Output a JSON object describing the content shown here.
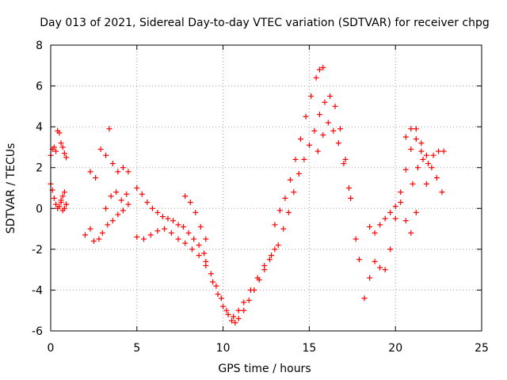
{
  "chart_data": {
    "type": "scatter",
    "title": "Day 013 of 2021, Sidereal Day-to-day VTEC variation (SDTVAR) for receiver chpg",
    "xlabel": "GPS time / hours",
    "ylabel": "SDTVAR / TECUs",
    "xlim": [
      0,
      25
    ],
    "ylim": [
      -6,
      8
    ],
    "xticks": [
      0,
      5,
      10,
      15,
      20,
      25
    ],
    "yticks": [
      -6,
      -4,
      -2,
      0,
      2,
      4,
      6,
      8
    ],
    "grid": true,
    "marker": "+",
    "series": [
      {
        "name": "SDTVAR",
        "color": "#ff0000",
        "x": [
          0.0,
          0.1,
          0.2,
          0.3,
          0.4,
          0.5,
          0.6,
          0.7,
          0.8,
          0.9,
          0.0,
          0.1,
          0.2,
          0.3,
          0.4,
          0.5,
          0.6,
          0.7,
          0.8,
          0.9,
          0.6,
          0.7,
          0.8,
          0.9,
          2.0,
          2.3,
          2.5,
          2.8,
          3.0,
          3.3,
          3.6,
          3.9,
          4.2,
          4.5,
          2.3,
          2.6,
          2.9,
          3.2,
          3.4,
          3.6,
          3.9,
          4.2,
          4.5,
          3.2,
          3.5,
          3.8,
          4.1,
          4.4,
          5.0,
          5.3,
          5.6,
          5.9,
          6.2,
          6.5,
          6.8,
          7.1,
          7.4,
          7.7,
          8.0,
          8.3,
          8.6,
          8.9,
          5.0,
          5.4,
          5.8,
          6.2,
          6.6,
          7.0,
          7.4,
          7.8,
          8.2,
          8.6,
          9.0,
          7.8,
          8.1,
          8.4,
          8.7,
          9.0,
          9.0,
          9.3,
          9.6,
          9.9,
          10.2,
          10.5,
          10.7,
          10.9,
          11.2,
          11.5,
          11.8,
          12.1,
          12.4,
          12.7,
          13.0,
          9.4,
          9.7,
          10.0,
          10.3,
          10.6,
          10.9,
          11.2,
          11.6,
          12.0,
          12.4,
          12.8,
          13.0,
          13.3,
          13.6,
          13.9,
          14.2,
          14.5,
          14.8,
          15.1,
          15.4,
          15.6,
          15.8,
          13.2,
          13.5,
          13.8,
          14.1,
          14.4,
          14.7,
          15.0,
          15.3,
          15.6,
          15.9,
          16.2,
          16.5,
          16.8,
          17.1,
          17.4,
          17.7,
          17.9,
          15.5,
          15.8,
          16.1,
          16.4,
          16.7,
          17.0,
          17.3,
          18.2,
          18.5,
          18.8,
          19.1,
          19.4,
          19.7,
          20.0,
          20.3,
          20.6,
          20.9,
          21.2,
          21.5,
          21.8,
          18.5,
          18.8,
          19.1,
          19.4,
          19.7,
          20.0,
          20.3,
          20.6,
          20.9,
          21.2,
          20.6,
          20.9,
          21.2,
          21.5,
          21.8,
          22.1,
          22.4,
          22.7,
          21.0,
          21.3,
          21.6,
          21.9,
          22.2,
          22.5,
          22.8
        ],
        "y": [
          2.6,
          2.9,
          3.0,
          2.8,
          3.8,
          3.7,
          3.2,
          3.0,
          2.7,
          2.5,
          1.2,
          0.9,
          0.5,
          0.2,
          0.0,
          0.1,
          0.3,
          0.6,
          0.8,
          0.2,
          0.4,
          -0.1,
          0.0,
          0.2,
          -1.3,
          -1.0,
          -1.6,
          -1.5,
          -1.2,
          -0.8,
          -0.6,
          -0.3,
          -0.1,
          0.2,
          1.8,
          1.5,
          2.9,
          2.6,
          3.9,
          2.2,
          1.8,
          2.0,
          1.8,
          0.0,
          0.6,
          0.8,
          0.4,
          0.7,
          1.0,
          0.7,
          0.3,
          0.0,
          -0.2,
          -0.4,
          -0.5,
          -0.6,
          -0.8,
          -0.9,
          -1.2,
          -1.5,
          -1.8,
          -2.2,
          -1.4,
          -1.5,
          -1.3,
          -1.1,
          -1.0,
          -1.2,
          -1.5,
          -1.7,
          -2.0,
          -2.3,
          -2.6,
          0.6,
          0.3,
          -0.2,
          -0.9,
          -1.5,
          -2.8,
          -3.2,
          -3.8,
          -4.4,
          -5.0,
          -5.5,
          -5.6,
          -5.4,
          -5.0,
          -4.5,
          -4.0,
          -3.5,
          -3.0,
          -2.5,
          -2.0,
          -3.6,
          -4.2,
          -4.8,
          -5.2,
          -5.3,
          -5.0,
          -4.6,
          -4.0,
          -3.4,
          -2.8,
          -2.3,
          -0.8,
          -0.1,
          0.5,
          1.4,
          2.4,
          3.4,
          4.5,
          5.5,
          6.4,
          6.8,
          6.9,
          -1.8,
          -1.0,
          -0.2,
          0.8,
          1.7,
          2.4,
          3.1,
          3.8,
          4.6,
          5.2,
          5.5,
          5.0,
          3.9,
          2.4,
          0.5,
          -1.5,
          -2.5,
          2.8,
          3.6,
          4.2,
          3.8,
          3.2,
          2.2,
          1.0,
          -4.4,
          -3.4,
          -2.6,
          -2.9,
          -3.0,
          -2.0,
          -0.5,
          0.8,
          1.9,
          2.9,
          3.4,
          2.8,
          1.2,
          -0.9,
          -1.2,
          -0.8,
          -0.5,
          -0.2,
          0.1,
          0.3,
          -0.6,
          -1.2,
          -0.2,
          3.5,
          3.9,
          3.9,
          3.2,
          2.6,
          2.0,
          1.5,
          0.8,
          1.2,
          2.0,
          2.4,
          2.2,
          2.6,
          2.8,
          2.8
        ]
      }
    ]
  }
}
